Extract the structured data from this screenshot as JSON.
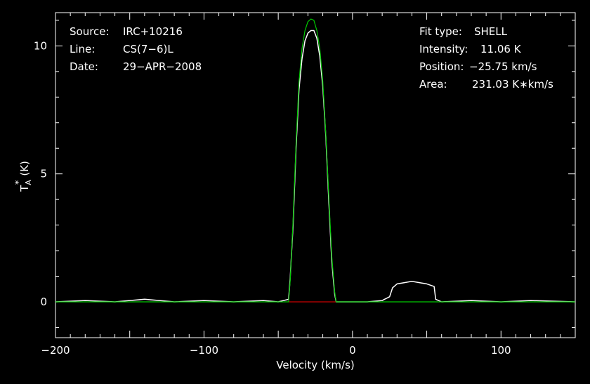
{
  "header": {
    "left": [
      {
        "label": "Source:",
        "value": "IRC+10216"
      },
      {
        "label": "Line:",
        "value": "CS(7−6)L"
      },
      {
        "label": "Date:",
        "value": "29−APR−2008"
      }
    ],
    "right": [
      {
        "label": "Fit type:",
        "value": "SHELL"
      },
      {
        "label": "Intensity:",
        "value": "11.06 K"
      },
      {
        "label": "Position:",
        "value": "−25.75 km/s"
      },
      {
        "label": "Area:",
        "value": "231.03 K∗km/s"
      }
    ]
  },
  "colors": {
    "background": "#000000",
    "data": "#ffffff",
    "fit": "#00c800",
    "baseline": "#c80000"
  },
  "chart_data": {
    "type": "line",
    "xlabel": "Velocity (km/s)",
    "ylabel_main": "T",
    "ylabel_sub": "A",
    "ylabel_sup": "*",
    "ylabel_unit": "(K)",
    "xlim": [
      -200,
      150
    ],
    "ylim": [
      -1.4,
      11.3
    ],
    "xticks": [
      -200,
      -100,
      0,
      100
    ],
    "xtick_labels": [
      "−200",
      "−100",
      "0",
      "100"
    ],
    "yticks": [
      0,
      5,
      10
    ],
    "ytick_labels": [
      "0",
      "5",
      "10"
    ],
    "series": [
      {
        "role": "data",
        "x": [
          -200,
          -180,
          -160,
          -140,
          -120,
          -100,
          -80,
          -60,
          -50,
          -43,
          -42,
          -40,
          -38,
          -36,
          -34,
          -32,
          -30,
          -28,
          -26,
          -24,
          -22,
          -20,
          -18,
          -16,
          -14,
          -12,
          -11,
          -10,
          0,
          10,
          20,
          25,
          27,
          30,
          35,
          40,
          45,
          50,
          55,
          56,
          60,
          80,
          100,
          120,
          150
        ],
        "y": [
          0.0,
          0.05,
          0.0,
          0.1,
          0.0,
          0.05,
          0.0,
          0.05,
          0.0,
          0.1,
          0.9,
          3.0,
          6.0,
          8.3,
          9.5,
          10.2,
          10.5,
          10.6,
          10.6,
          10.3,
          9.6,
          8.4,
          6.5,
          4.0,
          1.6,
          0.3,
          0.0,
          0.0,
          0.0,
          0.0,
          0.05,
          0.2,
          0.55,
          0.7,
          0.75,
          0.8,
          0.75,
          0.7,
          0.6,
          0.1,
          0.0,
          0.05,
          0.0,
          0.05,
          0.0
        ]
      },
      {
        "role": "fit",
        "x": [
          -200,
          -43,
          -42,
          -40,
          -38,
          -36,
          -34,
          -32,
          -30,
          -28,
          -26,
          -24,
          -22,
          -20,
          -18,
          -16,
          -14,
          -12,
          -11,
          150
        ],
        "y": [
          0,
          0,
          0.8,
          3.2,
          6.2,
          8.6,
          9.9,
          10.6,
          10.95,
          11.05,
          11.0,
          10.6,
          9.9,
          8.6,
          6.6,
          4.2,
          1.8,
          0.4,
          0,
          0
        ]
      },
      {
        "role": "baseline",
        "x": [
          -43,
          -11
        ],
        "y": [
          0,
          0
        ]
      }
    ]
  }
}
